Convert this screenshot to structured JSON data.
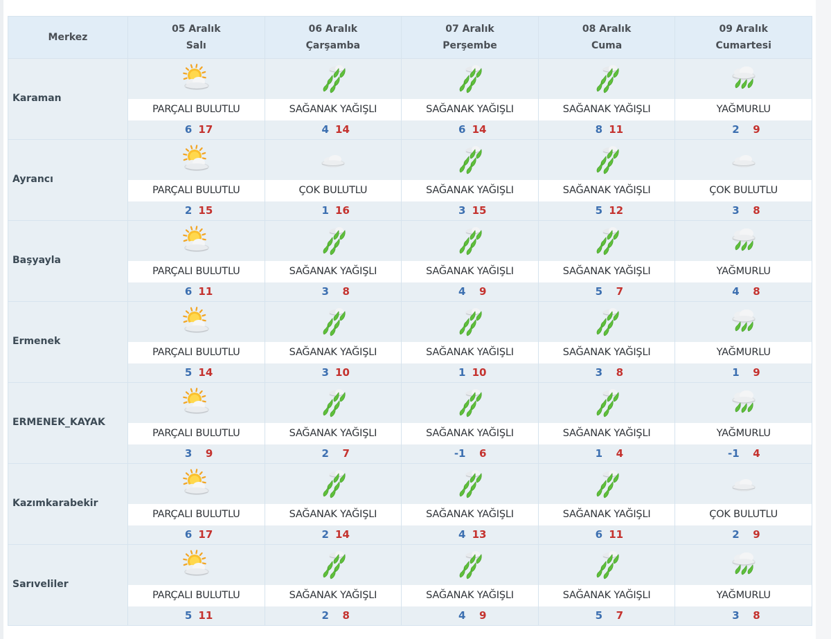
{
  "header": {
    "merkez_label": "Merkez",
    "days": [
      {
        "date": "05 Aralık",
        "weekday": "Salı"
      },
      {
        "date": "06 Aralık",
        "weekday": "Çarşamba"
      },
      {
        "date": "07 Aralık",
        "weekday": "Perşembe"
      },
      {
        "date": "08 Aralık",
        "weekday": "Cuma"
      },
      {
        "date": "09 Aralık",
        "weekday": "Cumartesi"
      }
    ]
  },
  "colors": {
    "header_bg": "#e1edf7",
    "row_bg": "#e8eff4",
    "min_temp": "#3c6fb0",
    "max_temp": "#c4322e",
    "rain": "#5fbf3b"
  },
  "rows": [
    {
      "city": "Karaman",
      "days": [
        {
          "icon": "partly-cloudy-icon",
          "desc": "PARÇALI BULUTLU",
          "min": "6",
          "max": "17"
        },
        {
          "icon": "shower-rain-icon",
          "desc": "SAĞANAK YAĞIŞLI",
          "min": "4",
          "max": "14"
        },
        {
          "icon": "shower-rain-icon",
          "desc": "SAĞANAK YAĞIŞLI",
          "min": "6",
          "max": "14"
        },
        {
          "icon": "shower-rain-icon",
          "desc": "SAĞANAK YAĞIŞLI",
          "min": "8",
          "max": "11"
        },
        {
          "icon": "rain-icon",
          "desc": "YAĞMURLU",
          "min": "2",
          "max": "9"
        }
      ]
    },
    {
      "city": "Ayrancı",
      "days": [
        {
          "icon": "partly-cloudy-icon",
          "desc": "PARÇALI BULUTLU",
          "min": "2",
          "max": "15"
        },
        {
          "icon": "cloudy-icon",
          "desc": "ÇOK BULUTLU",
          "min": "1",
          "max": "16"
        },
        {
          "icon": "shower-rain-icon",
          "desc": "SAĞANAK YAĞIŞLI",
          "min": "3",
          "max": "15"
        },
        {
          "icon": "shower-rain-icon",
          "desc": "SAĞANAK YAĞIŞLI",
          "min": "5",
          "max": "12"
        },
        {
          "icon": "cloudy-icon",
          "desc": "ÇOK BULUTLU",
          "min": "3",
          "max": "8"
        }
      ]
    },
    {
      "city": "Başyayla",
      "days": [
        {
          "icon": "partly-cloudy-icon",
          "desc": "PARÇALI BULUTLU",
          "min": "6",
          "max": "11"
        },
        {
          "icon": "shower-rain-icon",
          "desc": "SAĞANAK YAĞIŞLI",
          "min": "3",
          "max": "8"
        },
        {
          "icon": "shower-rain-icon",
          "desc": "SAĞANAK YAĞIŞLI",
          "min": "4",
          "max": "9"
        },
        {
          "icon": "shower-rain-icon",
          "desc": "SAĞANAK YAĞIŞLI",
          "min": "5",
          "max": "7"
        },
        {
          "icon": "rain-icon",
          "desc": "YAĞMURLU",
          "min": "4",
          "max": "8"
        }
      ]
    },
    {
      "city": "Ermenek",
      "days": [
        {
          "icon": "partly-cloudy-icon",
          "desc": "PARÇALI BULUTLU",
          "min": "5",
          "max": "14"
        },
        {
          "icon": "shower-rain-icon",
          "desc": "SAĞANAK YAĞIŞLI",
          "min": "3",
          "max": "10"
        },
        {
          "icon": "shower-rain-icon",
          "desc": "SAĞANAK YAĞIŞLI",
          "min": "1",
          "max": "10"
        },
        {
          "icon": "shower-rain-icon",
          "desc": "SAĞANAK YAĞIŞLI",
          "min": "3",
          "max": "8"
        },
        {
          "icon": "rain-icon",
          "desc": "YAĞMURLU",
          "min": "1",
          "max": "9"
        }
      ]
    },
    {
      "city": "ERMENEK_KAYAK",
      "days": [
        {
          "icon": "partly-cloudy-icon",
          "desc": "PARÇALI BULUTLU",
          "min": "3",
          "max": "9"
        },
        {
          "icon": "shower-rain-icon",
          "desc": "SAĞANAK YAĞIŞLI",
          "min": "2",
          "max": "7"
        },
        {
          "icon": "shower-rain-icon",
          "desc": "SAĞANAK YAĞIŞLI",
          "min": "-1",
          "max": "6"
        },
        {
          "icon": "shower-rain-icon",
          "desc": "SAĞANAK YAĞIŞLI",
          "min": "1",
          "max": "4"
        },
        {
          "icon": "rain-icon",
          "desc": "YAĞMURLU",
          "min": "-1",
          "max": "4"
        }
      ]
    },
    {
      "city": "Kazımkarabekir",
      "days": [
        {
          "icon": "partly-cloudy-icon",
          "desc": "PARÇALI BULUTLU",
          "min": "6",
          "max": "17"
        },
        {
          "icon": "shower-rain-icon",
          "desc": "SAĞANAK YAĞIŞLI",
          "min": "2",
          "max": "14"
        },
        {
          "icon": "shower-rain-icon",
          "desc": "SAĞANAK YAĞIŞLI",
          "min": "4",
          "max": "13"
        },
        {
          "icon": "shower-rain-icon",
          "desc": "SAĞANAK YAĞIŞLI",
          "min": "6",
          "max": "11"
        },
        {
          "icon": "cloudy-icon",
          "desc": "ÇOK BULUTLU",
          "min": "2",
          "max": "9"
        }
      ]
    },
    {
      "city": "Sarıveliler",
      "days": [
        {
          "icon": "partly-cloudy-icon",
          "desc": "PARÇALI BULUTLU",
          "min": "5",
          "max": "11"
        },
        {
          "icon": "shower-rain-icon",
          "desc": "SAĞANAK YAĞIŞLI",
          "min": "2",
          "max": "8"
        },
        {
          "icon": "shower-rain-icon",
          "desc": "SAĞANAK YAĞIŞLI",
          "min": "4",
          "max": "9"
        },
        {
          "icon": "shower-rain-icon",
          "desc": "SAĞANAK YAĞIŞLI",
          "min": "5",
          "max": "7"
        },
        {
          "icon": "rain-icon",
          "desc": "YAĞMURLU",
          "min": "3",
          "max": "8"
        }
      ]
    }
  ]
}
